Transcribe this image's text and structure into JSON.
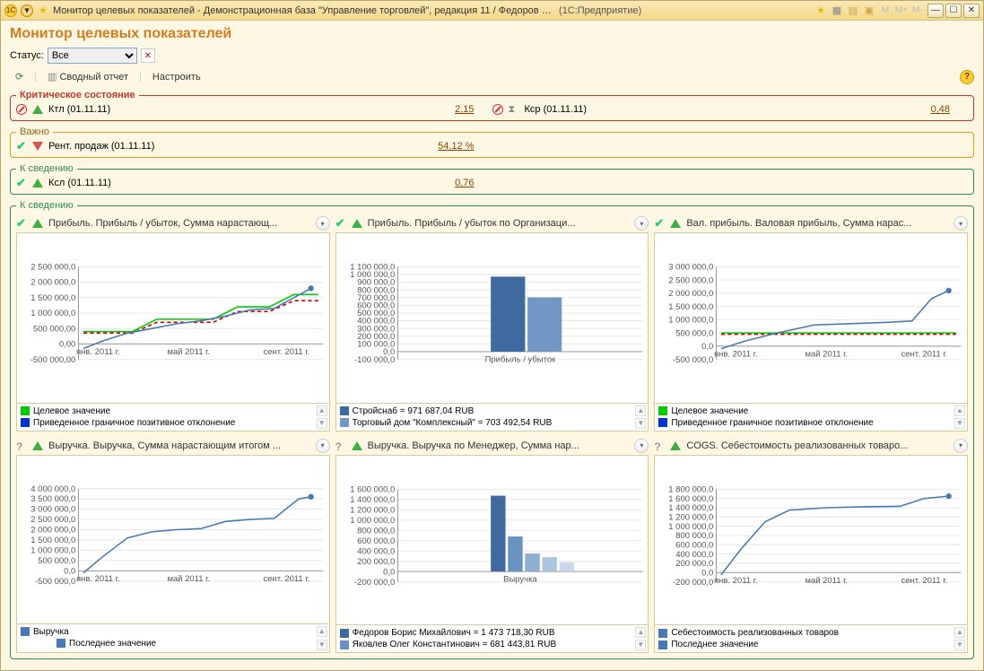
{
  "window": {
    "title": "Монитор целевых показателей - Демонстрационная база \"Управление торговлей\", редакция 11 / Федоров Борис Михайло...",
    "app_hint": "(1С:Предприятие)"
  },
  "page_title": "Монитор целевых показателей",
  "status": {
    "label": "Статус:",
    "selected": "Все",
    "options": [
      "Все"
    ]
  },
  "toolbar": {
    "report": "Сводный отчет",
    "settings": "Настроить"
  },
  "sections": {
    "critical": {
      "title": "Критическое состояние",
      "items": [
        {
          "icon1": "nocircle",
          "icon2": "tri-up",
          "label": "Ктл (01.11.11)",
          "value": "2,15"
        },
        {
          "icon1": "nocircle",
          "icon2": "hourglass",
          "label": "Кср (01.11.11)",
          "value": "0,48"
        }
      ]
    },
    "warn": {
      "title": "Важно",
      "items": [
        {
          "icon1": "check",
          "icon2": "tri-down",
          "label": "Рент. продаж (01.11.11)",
          "value": "54,12 %"
        }
      ]
    },
    "info": {
      "title": "К сведению",
      "items": [
        {
          "icon1": "check",
          "icon2": "tri-up",
          "label": "Ксл (01.11.11)",
          "value": "0,76"
        }
      ]
    }
  },
  "charts_section_title": "К сведению",
  "charts": [
    {
      "id": "profit-cum",
      "head_icon1": "check",
      "head_icon2": "tri-up",
      "title": "Прибыль. Прибыль / убыток, Сумма нарастающ...",
      "type": "line",
      "y_ticks": [
        "-500 000,00",
        "0,00",
        "500 000,00",
        "1 000 000,0",
        "1 500 000,0",
        "2 000 000,0",
        "2 500 000,0"
      ],
      "y_values": [
        -500000,
        0,
        500000,
        1000000,
        1500000,
        2000000,
        2500000
      ],
      "x_ticks": [
        "янв. 2011 г.",
        "май 2011 г.",
        "сент. 2011 г."
      ],
      "x_positions": [
        0.08,
        0.45,
        0.85
      ],
      "series": [
        {
          "name": "target",
          "color": "#00cc00",
          "dash": false,
          "points": [
            [
              0.02,
              400000
            ],
            [
              0.12,
              400000
            ],
            [
              0.22,
              400000
            ],
            [
              0.32,
              800000
            ],
            [
              0.42,
              800000
            ],
            [
              0.55,
              800000
            ],
            [
              0.65,
              1200000
            ],
            [
              0.78,
              1200000
            ],
            [
              0.88,
              1600000
            ],
            [
              0.98,
              1600000
            ]
          ]
        },
        {
          "name": "bound",
          "color": "#cc0000",
          "dash": true,
          "points": [
            [
              0.02,
              350000
            ],
            [
              0.12,
              350000
            ],
            [
              0.22,
              350000
            ],
            [
              0.32,
              700000
            ],
            [
              0.42,
              700000
            ],
            [
              0.55,
              700000
            ],
            [
              0.65,
              1050000
            ],
            [
              0.78,
              1050000
            ],
            [
              0.88,
              1400000
            ],
            [
              0.98,
              1400000
            ]
          ]
        },
        {
          "name": "actual",
          "color": "#4a7ab2",
          "dash": false,
          "marker_last": true,
          "points": [
            [
              0.02,
              -150000
            ],
            [
              0.1,
              100000
            ],
            [
              0.2,
              350000
            ],
            [
              0.3,
              500000
            ],
            [
              0.4,
              650000
            ],
            [
              0.5,
              750000
            ],
            [
              0.6,
              900000
            ],
            [
              0.7,
              1100000
            ],
            [
              0.8,
              1150000
            ],
            [
              0.88,
              1500000
            ],
            [
              0.95,
              1800000
            ]
          ]
        }
      ],
      "legend": [
        {
          "color": "#00cc00",
          "text": "Целевое значение"
        },
        {
          "color": "#0033cc",
          "text": "Приведенное граничное позитивное отклонение"
        }
      ]
    },
    {
      "id": "profit-org",
      "head_icon1": "check",
      "head_icon2": "tri-up",
      "title": "Прибыль. Прибыль / убыток по Организаци...",
      "type": "bar",
      "y_ticks": [
        "-100 000,0",
        "0,0",
        "100 000,0",
        "200 000,0",
        "300 000,0",
        "400 000,0",
        "500 000,0",
        "600 000,0",
        "700 000,0",
        "800 000,0",
        "900 000,0",
        "1 000 000,0",
        "1 100 000,0"
      ],
      "y_values": [
        -100000,
        0,
        100000,
        200000,
        300000,
        400000,
        500000,
        600000,
        700000,
        800000,
        900000,
        1000000,
        1100000
      ],
      "x_label": "Прибыль / убыток",
      "bars": [
        {
          "color": "#3e6aa0",
          "value": 971687,
          "x": 0.38,
          "w": 0.14
        },
        {
          "color": "#7297c4",
          "value": 703493,
          "x": 0.53,
          "w": 0.14
        }
      ],
      "legend": [
        {
          "color": "#3e6aa0",
          "text": "Стройснаб = 971 687,04 RUB"
        },
        {
          "color": "#7297c4",
          "text": "Торговый дом \"Комплексный\" = 703 492,54 RUB"
        }
      ]
    },
    {
      "id": "gross-profit",
      "head_icon1": "check",
      "head_icon2": "tri-up",
      "title": "Вал. прибыль. Валовая прибыль, Сумма нарас...",
      "type": "line",
      "y_ticks": [
        "-500 000,0",
        "0,0",
        "500 000,0",
        "1 000 000,0",
        "1 500 000,0",
        "2 000 000,0",
        "2 500 000,0",
        "3 000 000,0"
      ],
      "y_values": [
        -500000,
        0,
        500000,
        1000000,
        1500000,
        2000000,
        2500000,
        3000000
      ],
      "x_ticks": [
        "янв. 2011 г.",
        "май 2011 г.",
        "сент. 2011 г."
      ],
      "x_positions": [
        0.08,
        0.45,
        0.85
      ],
      "series": [
        {
          "name": "target",
          "color": "#00cc00",
          "dash": false,
          "points": [
            [
              0.02,
              500000
            ],
            [
              0.98,
              500000
            ]
          ]
        },
        {
          "name": "bound",
          "color": "#cc0000",
          "dash": true,
          "points": [
            [
              0.02,
              450000
            ],
            [
              0.98,
              450000
            ]
          ]
        },
        {
          "name": "actual",
          "color": "#4a7ab2",
          "dash": false,
          "marker_last": true,
          "points": [
            [
              0.02,
              -100000
            ],
            [
              0.12,
              200000
            ],
            [
              0.25,
              500000
            ],
            [
              0.4,
              800000
            ],
            [
              0.55,
              850000
            ],
            [
              0.7,
              900000
            ],
            [
              0.8,
              950000
            ],
            [
              0.88,
              1800000
            ],
            [
              0.95,
              2100000
            ]
          ]
        }
      ],
      "legend": [
        {
          "color": "#00cc00",
          "text": "Целевое значение"
        },
        {
          "color": "#0033cc",
          "text": "Приведенное граничное позитивное отклонение"
        }
      ]
    },
    {
      "id": "revenue-cum",
      "head_icon1": "question",
      "head_icon2": "tri-up",
      "title": "Выручка. Выручка, Сумма нарастающим итогом ...",
      "type": "line",
      "y_ticks": [
        "-500 000,0",
        "0,0",
        "500 000,0",
        "1 000 000,0",
        "1 500 000,0",
        "2 000 000,0",
        "2 500 000,0",
        "3 000 000,0",
        "3 500 000,0",
        "4 000 000,0"
      ],
      "y_values": [
        -500000,
        0,
        500000,
        1000000,
        1500000,
        2000000,
        2500000,
        3000000,
        3500000,
        4000000
      ],
      "x_ticks": [
        "янв. 2011 г.",
        "май 2011 г.",
        "сент. 2011 г."
      ],
      "x_positions": [
        0.08,
        0.45,
        0.85
      ],
      "series": [
        {
          "name": "actual",
          "color": "#4a7ab2",
          "dash": false,
          "marker_last": true,
          "points": [
            [
              0.02,
              -100000
            ],
            [
              0.1,
              700000
            ],
            [
              0.2,
              1600000
            ],
            [
              0.3,
              1900000
            ],
            [
              0.4,
              2000000
            ],
            [
              0.5,
              2050000
            ],
            [
              0.6,
              2400000
            ],
            [
              0.7,
              2500000
            ],
            [
              0.8,
              2550000
            ],
            [
              0.9,
              3500000
            ],
            [
              0.95,
              3600000
            ]
          ]
        }
      ],
      "legend": [
        {
          "color": "#4a7ab2",
          "text": "Выручка"
        },
        {
          "color": "#4a7ab2",
          "text": "Последнее значение",
          "inline": true
        }
      ]
    },
    {
      "id": "revenue-mgr",
      "head_icon1": "question",
      "head_icon2": "tri-up",
      "title": "Выручка. Выручка по Менеджер, Сумма нар...",
      "type": "bar",
      "y_ticks": [
        "-200 000,0",
        "0,0",
        "200 000,0",
        "400 000,0",
        "600 000,0",
        "800 000,0",
        "1 000 000,0",
        "1 200 000,0",
        "1 400 000,0",
        "1 600 000,0"
      ],
      "y_values": [
        -200000,
        0,
        200000,
        400000,
        600000,
        800000,
        1000000,
        1200000,
        1400000,
        1600000
      ],
      "x_label": "Выручка",
      "bars": [
        {
          "color": "#3e6aa0",
          "value": 1473718,
          "x": 0.38,
          "w": 0.06
        },
        {
          "color": "#6a92c0",
          "value": 681444,
          "x": 0.45,
          "w": 0.06
        },
        {
          "color": "#8eaed2",
          "value": 350000,
          "x": 0.52,
          "w": 0.06
        },
        {
          "color": "#aec5e0",
          "value": 280000,
          "x": 0.59,
          "w": 0.06
        },
        {
          "color": "#c9d9ec",
          "value": 180000,
          "x": 0.66,
          "w": 0.06
        }
      ],
      "legend": [
        {
          "color": "#3e6aa0",
          "text": "Федоров Борис Михайлович = 1 473 718,30 RUB"
        },
        {
          "color": "#6a92c0",
          "text": "Яковлев Олег Константинович = 681 443,81 RUB"
        }
      ]
    },
    {
      "id": "cogs",
      "head_icon1": "question",
      "head_icon2": "tri-up",
      "title": "COGS. Себестоимость реализованных товаро...",
      "type": "line",
      "y_ticks": [
        "-200 000,0",
        "0,0",
        "200 000,0",
        "400 000,0",
        "600 000,0",
        "800 000,0",
        "1 000 000,0",
        "1 200 000,0",
        "1 400 000,0",
        "1 600 000,0",
        "1 800 000,0"
      ],
      "y_values": [
        -200000,
        0,
        200000,
        400000,
        600000,
        800000,
        1000000,
        1200000,
        1400000,
        1600000,
        1800000
      ],
      "x_ticks": [
        "янв. 2011 г.",
        "май 2011 г.",
        "сент. 2011 г."
      ],
      "x_positions": [
        0.08,
        0.45,
        0.85
      ],
      "series": [
        {
          "name": "actual",
          "color": "#4a7ab2",
          "dash": false,
          "marker_last": true,
          "points": [
            [
              0.02,
              -50000
            ],
            [
              0.1,
              500000
            ],
            [
              0.2,
              1100000
            ],
            [
              0.3,
              1350000
            ],
            [
              0.45,
              1400000
            ],
            [
              0.6,
              1420000
            ],
            [
              0.75,
              1430000
            ],
            [
              0.85,
              1600000
            ],
            [
              0.95,
              1650000
            ]
          ]
        }
      ],
      "legend": [
        {
          "color": "#4a7ab2",
          "text": "Себестоимость реализованных товаров"
        },
        {
          "color": "#4a7ab2",
          "text": "Последнее значение"
        }
      ]
    }
  ],
  "colors": {
    "bg": "#fdf7e4",
    "border": "#d9ca96",
    "chart_bg": "#ffffff"
  }
}
